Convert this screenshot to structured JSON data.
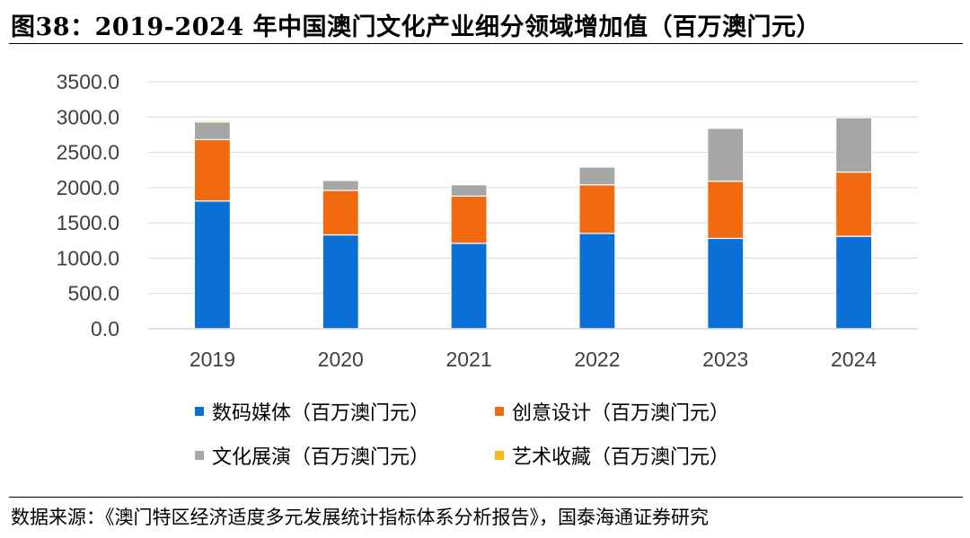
{
  "figure": {
    "title": "图38：2019-2024 年中国澳门文化产业细分领域增加值（百万澳门元）",
    "source": "数据来源：《澳门特区经济适度多元发展统计指标体系分析报告》，国泰海通证券研究"
  },
  "chart_data": {
    "type": "bar",
    "stacked": true,
    "title": "2019-2024 年中国澳门文化产业细分领域增加值（百万澳门元）",
    "xlabel": "",
    "ylabel": "",
    "ylim": [
      0,
      3500
    ],
    "yticks": [
      0,
      500,
      1000,
      1500,
      2000,
      2500,
      3000,
      3500
    ],
    "ytick_labels": [
      "0.0",
      "500.0",
      "1000.0",
      "1500.0",
      "2000.0",
      "2500.0",
      "3000.0",
      "3500.0"
    ],
    "grid": true,
    "legend_position": "bottom",
    "categories": [
      "2019",
      "2020",
      "2021",
      "2022",
      "2023",
      "2024"
    ],
    "series": [
      {
        "name": "数码媒体（百万澳门元）",
        "color": "#0a6fd6",
        "values": [
          1810,
          1330,
          1210,
          1350,
          1280,
          1310
        ]
      },
      {
        "name": "创意设计（百万澳门元）",
        "color": "#f26a10",
        "values": [
          870,
          630,
          670,
          690,
          810,
          910
        ]
      },
      {
        "name": "文化展演（百万澳门元）",
        "color": "#a6a6a6",
        "values": [
          250,
          140,
          160,
          250,
          750,
          770
        ]
      },
      {
        "name": "艺术收藏（百万澳门元）",
        "color": "#fbb716",
        "values": [
          20,
          0,
          0,
          0,
          0,
          0
        ]
      }
    ]
  }
}
